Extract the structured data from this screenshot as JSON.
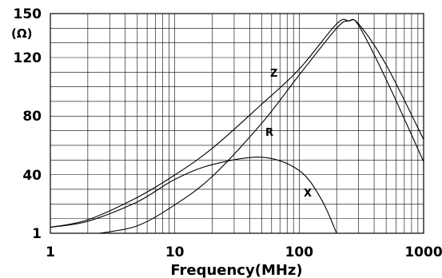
{
  "chart_data": {
    "type": "line",
    "title": "",
    "xlabel": "Frequency(MHz)",
    "ylabel": "(Ω)",
    "x_scale": "log",
    "xlim": [
      1,
      1000
    ],
    "ylim": [
      1,
      150
    ],
    "grid": true,
    "x_ticks": [
      "1",
      "10",
      "100",
      "1000"
    ],
    "y_ticks": [
      "1",
      "40",
      "80",
      "120",
      "150"
    ],
    "series": [
      {
        "name": "Z",
        "x": [
          1,
          2,
          5,
          10,
          20,
          50,
          100,
          200,
          250,
          300,
          500,
          1000
        ],
        "y": [
          5,
          10,
          25,
          40,
          58,
          88,
          112,
          143,
          145,
          143,
          115,
          64
        ]
      },
      {
        "name": "R",
        "x": [
          2.5,
          5,
          10,
          20,
          50,
          100,
          200,
          250,
          300,
          500,
          1000
        ],
        "y": [
          1,
          6,
          20,
          39,
          75,
          108,
          140,
          145,
          142,
          105,
          49
        ]
      },
      {
        "name": "X",
        "x": [
          1,
          2,
          5,
          10,
          20,
          50,
          100,
          150,
          200
        ],
        "y": [
          5,
          9,
          22,
          37,
          47,
          52,
          43,
          24,
          1
        ]
      }
    ]
  }
}
